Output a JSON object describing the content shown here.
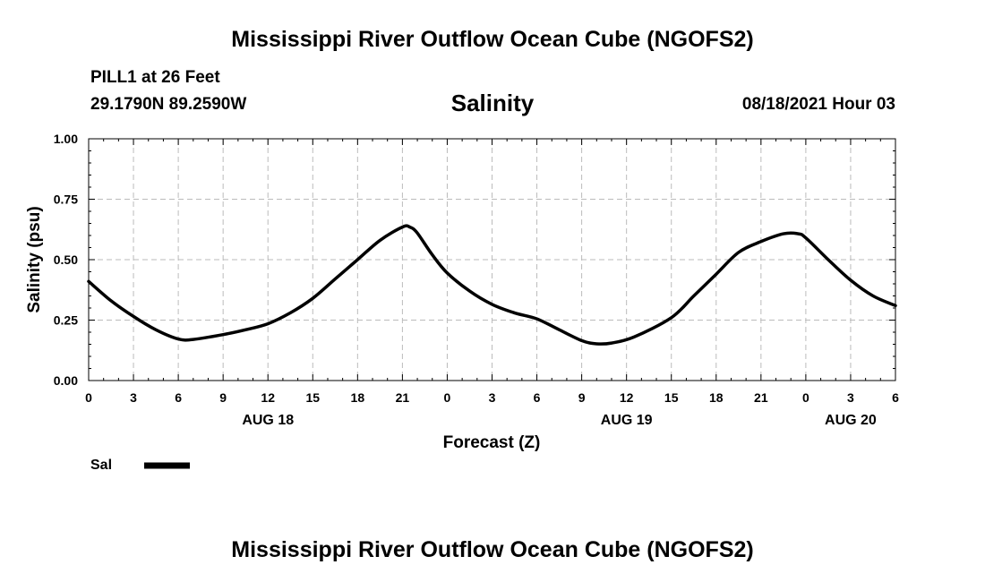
{
  "header": {
    "title": "Mississippi River Outflow Ocean Cube (NGOFS2)",
    "station": "PILL1 at 26 Feet",
    "coords": "29.1790N  89.2590W",
    "variable": "Salinity",
    "datetime": "08/18/2021 Hour 03"
  },
  "footer": {
    "title": "Mississippi River Outflow Ocean Cube (NGOFS2)"
  },
  "chart_data": {
    "type": "line",
    "title": "Salinity",
    "xlabel": "Forecast (Z)",
    "ylabel": "Salinity (psu)",
    "xlim": [
      0,
      54
    ],
    "ylim": [
      0,
      1
    ],
    "grid": true,
    "line_color": "#000000",
    "grid_color": "#bbbbbb",
    "x_ticks": [
      0,
      3,
      6,
      9,
      12,
      15,
      18,
      21,
      24,
      27,
      30,
      33,
      36,
      39,
      42,
      45,
      48,
      51,
      54
    ],
    "x_tick_labels": [
      "0",
      "3",
      "6",
      "9",
      "12",
      "15",
      "18",
      "21",
      "0",
      "3",
      "6",
      "9",
      "12",
      "15",
      "18",
      "21",
      "0",
      "3",
      "6"
    ],
    "y_ticks": [
      0,
      0.25,
      0.5,
      0.75,
      1.0
    ],
    "y_tick_labels": [
      "0.00",
      "0.25",
      "0.50",
      "0.75",
      "1.00"
    ],
    "day_labels": [
      {
        "x": 12,
        "label": "AUG 18"
      },
      {
        "x": 36,
        "label": "AUG 19"
      },
      {
        "x": 51,
        "label": "AUG 20"
      }
    ],
    "legend": {
      "label": "Sal",
      "position": "bottom-left"
    },
    "series": [
      {
        "name": "Sal",
        "x": [
          0,
          1.5,
          3,
          4.5,
          6,
          7,
          9,
          10.5,
          12,
          13.5,
          15,
          16.5,
          18,
          19.5,
          21,
          21.5,
          22,
          23,
          24,
          25.5,
          27,
          28.5,
          30,
          31.5,
          33,
          34,
          35,
          36.5,
          39,
          40.5,
          42,
          43.5,
          45,
          46.5,
          47.5,
          48,
          49.5,
          51,
          52.5,
          54
        ],
        "y": [
          0.41,
          0.33,
          0.265,
          0.21,
          0.172,
          0.17,
          0.19,
          0.21,
          0.235,
          0.28,
          0.34,
          0.42,
          0.5,
          0.58,
          0.635,
          0.635,
          0.61,
          0.52,
          0.445,
          0.37,
          0.315,
          0.28,
          0.255,
          0.21,
          0.165,
          0.152,
          0.155,
          0.18,
          0.26,
          0.35,
          0.44,
          0.53,
          0.575,
          0.607,
          0.607,
          0.59,
          0.5,
          0.415,
          0.35,
          0.31
        ]
      }
    ]
  }
}
